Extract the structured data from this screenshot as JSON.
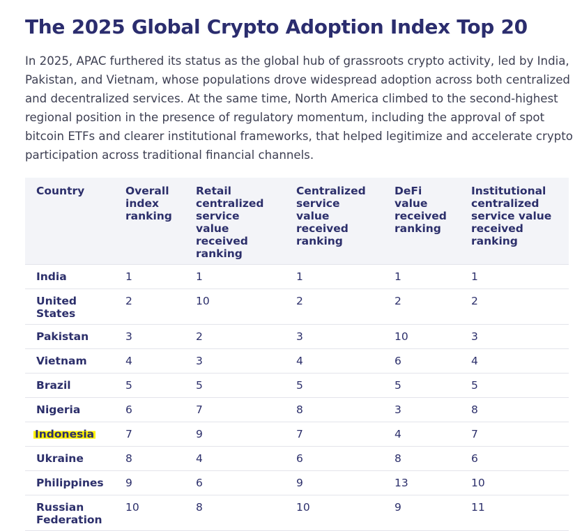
{
  "header": {
    "title": "The 2025 Global Crypto Adoption Index Top 20",
    "intro": "In 2025, APAC furthered its status as the global hub of grassroots crypto activity, led by India, Pakistan, and Vietnam, whose populations drove widespread adoption across both centralized and decentralized services. At the same time, North America climbed to the second-highest regional position in the presence of regulatory momentum, including the approval of spot bitcoin ETFs and clearer institutional frameworks, that helped legitimize and accelerate crypto participation across traditional financial channels."
  },
  "table": {
    "columns": [
      "Country",
      "Overall index ranking",
      "Retail centralized service value received ranking",
      "Centralized service value received ranking",
      "DeFi value received ranking",
      "Institutional centralized service value received ranking"
    ],
    "rows": [
      [
        "India",
        1,
        1,
        1,
        1,
        1
      ],
      [
        "United States",
        2,
        10,
        2,
        2,
        2
      ],
      [
        "Pakistan",
        3,
        2,
        3,
        10,
        3
      ],
      [
        "Vietnam",
        4,
        3,
        4,
        6,
        4
      ],
      [
        "Brazil",
        5,
        5,
        5,
        5,
        5
      ],
      [
        "Nigeria",
        6,
        7,
        8,
        3,
        8
      ],
      [
        "Indonesia",
        7,
        9,
        7,
        4,
        7
      ],
      [
        "Ukraine",
        8,
        4,
        6,
        8,
        6
      ],
      [
        "Philippines",
        9,
        6,
        9,
        13,
        10
      ],
      [
        "Russian Federation",
        10,
        8,
        10,
        9,
        11
      ]
    ],
    "highlighted_row": 6
  }
}
